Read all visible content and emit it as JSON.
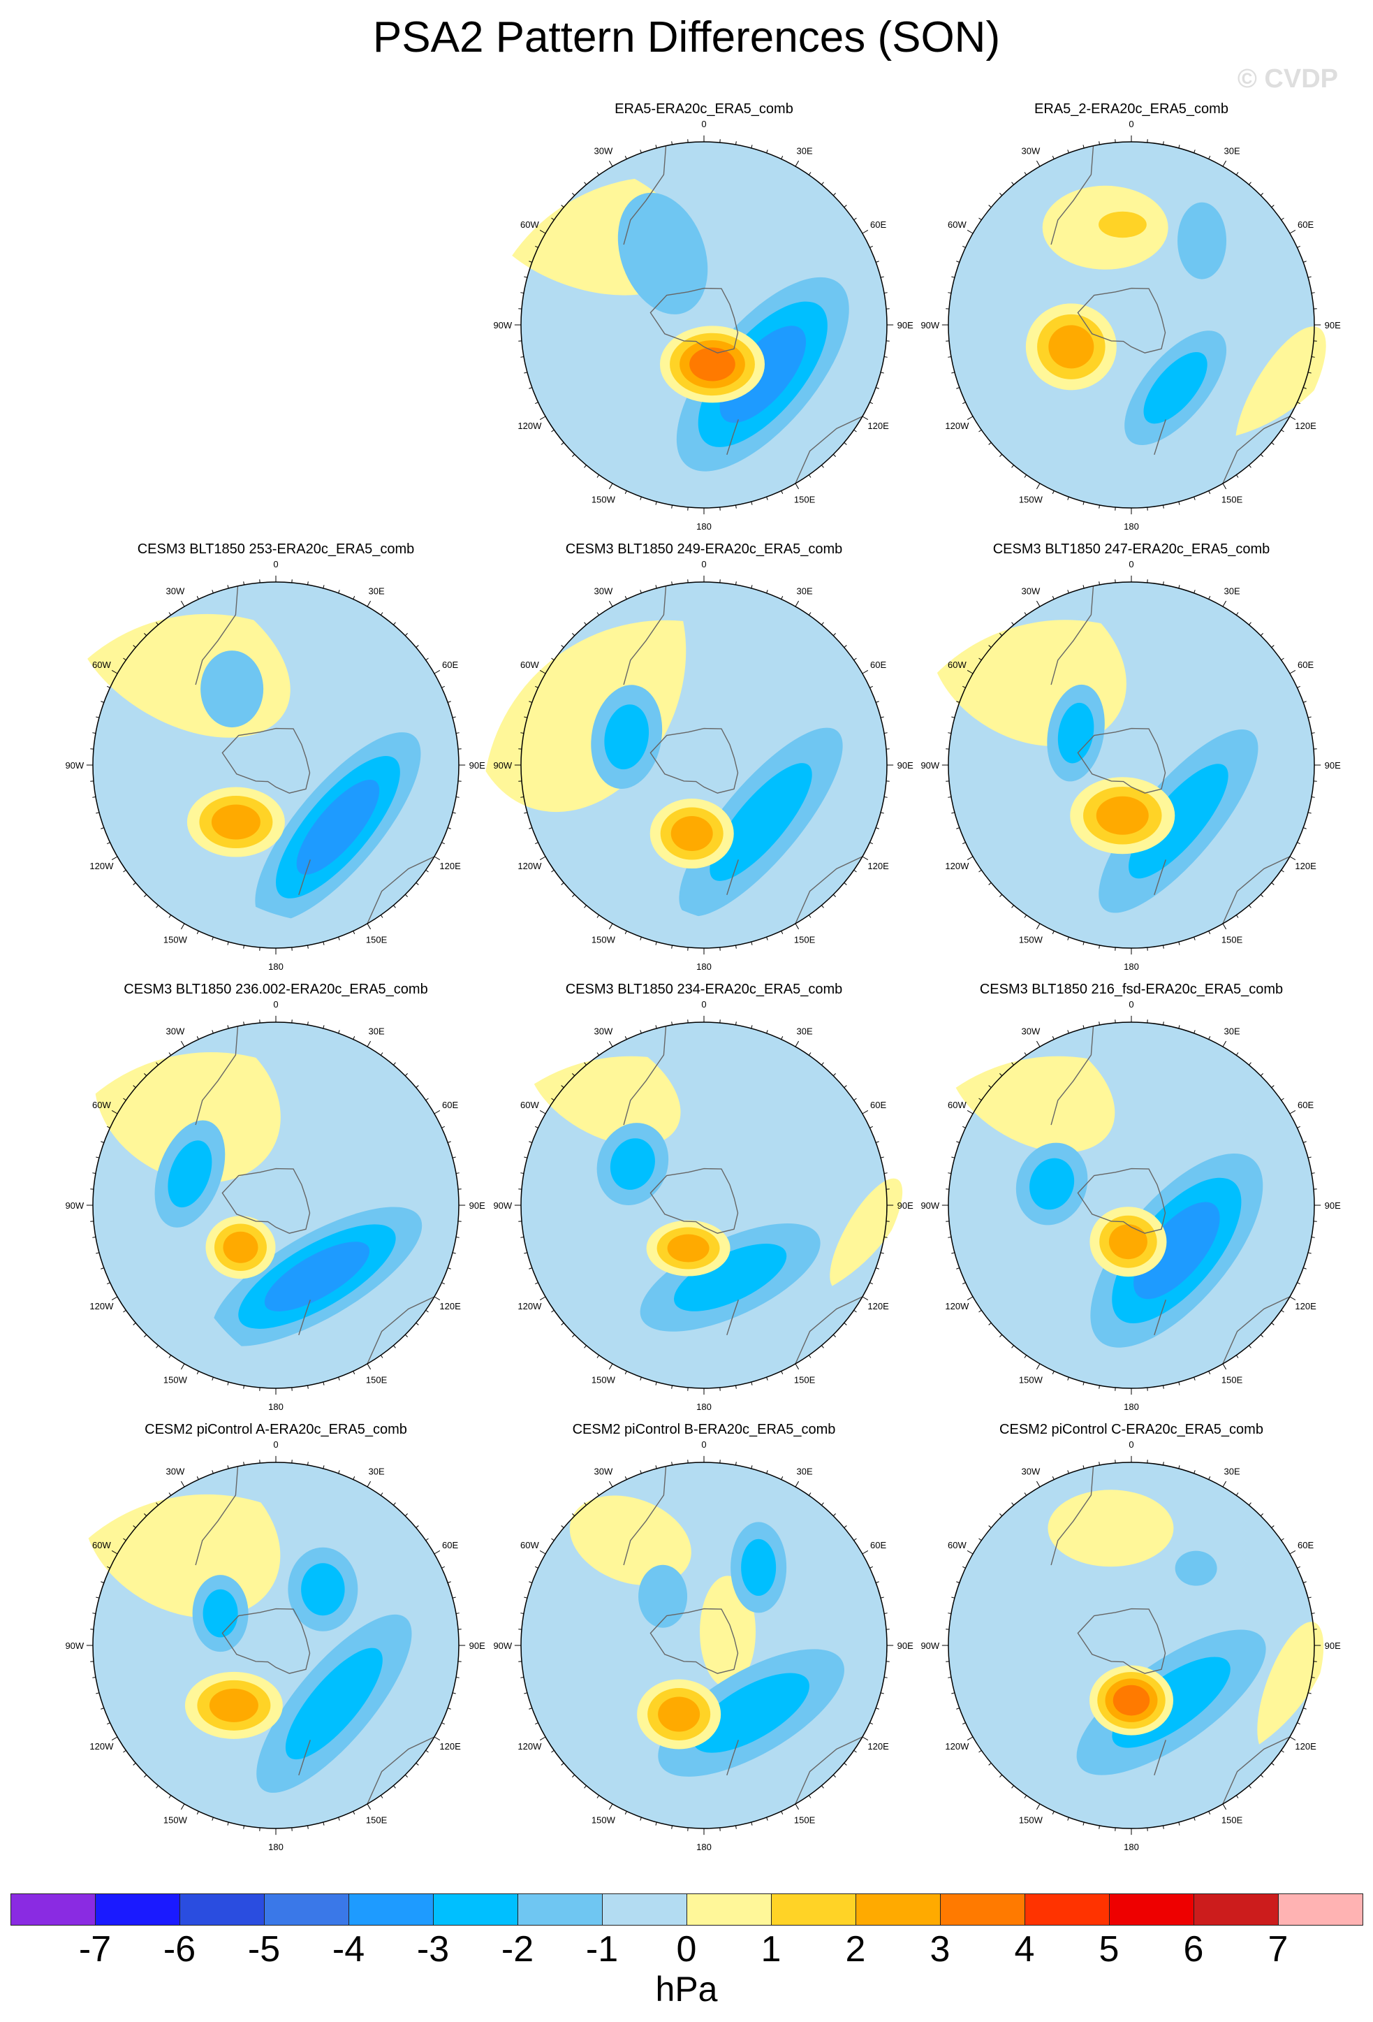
{
  "title": "PSA2 Pattern Differences (SON)",
  "watermark": "© CVDP",
  "lon_labels": [
    "0",
    "30E",
    "60E",
    "90E",
    "120E",
    "150E",
    "180",
    "150W",
    "120W",
    "90W",
    "60W",
    "30W"
  ],
  "panels": [
    {
      "title": "ERA5-ERA20c_ERA5_comb",
      "row": 0,
      "col": 1,
      "variant": 0
    },
    {
      "title": "ERA5_2-ERA20c_ERA5_comb",
      "row": 0,
      "col": 2,
      "variant": 1
    },
    {
      "title": "CESM3 BLT1850 253-ERA20c_ERA5_comb",
      "row": 1,
      "col": 0,
      "variant": 2
    },
    {
      "title": "CESM3 BLT1850 249-ERA20c_ERA5_comb",
      "row": 1,
      "col": 1,
      "variant": 3
    },
    {
      "title": "CESM3 BLT1850 247-ERA20c_ERA5_comb",
      "row": 1,
      "col": 2,
      "variant": 4
    },
    {
      "title": "CESM3 BLT1850 236.002-ERA20c_ERA5_comb",
      "row": 2,
      "col": 0,
      "variant": 5
    },
    {
      "title": "CESM3 BLT1850 234-ERA20c_ERA5_comb",
      "row": 2,
      "col": 1,
      "variant": 6
    },
    {
      "title": "CESM3 BLT1850 216_fsd-ERA20c_ERA5_comb",
      "row": 2,
      "col": 2,
      "variant": 7
    },
    {
      "title": "CESM2 piControl A-ERA20c_ERA5_comb",
      "row": 3,
      "col": 0,
      "variant": 8
    },
    {
      "title": "CESM2 piControl B-ERA20c_ERA5_comb",
      "row": 3,
      "col": 1,
      "variant": 9
    },
    {
      "title": "CESM2 piControl C-ERA20c_ERA5_comb",
      "row": 3,
      "col": 2,
      "variant": 10
    }
  ],
  "colorbar": {
    "unit": "hPa",
    "tick_labels": [
      "-7",
      "-6",
      "-5",
      "-4",
      "-3",
      "-2",
      "-1",
      "0",
      "1",
      "2",
      "3",
      "4",
      "5",
      "6",
      "7"
    ],
    "colors": [
      "#8a2be2",
      "#1a1aff",
      "#2a4de0",
      "#3a78e8",
      "#1e9bff",
      "#00bfff",
      "#6fc6f2",
      "#b3dcf2",
      "#fff799",
      "#ffd326",
      "#ffaa00",
      "#ff7a00",
      "#ff3300",
      "#ee0000",
      "#cc1c1c",
      "#ffb3b3"
    ]
  },
  "chart_data": {
    "type": "heatmap",
    "title": "PSA2 Pattern Differences (SON)",
    "projection": "south polar stereographic",
    "variable": "sea level pressure difference",
    "units": "hPa",
    "levels": [
      -7,
      -6,
      -5,
      -4,
      -3,
      -2,
      -1,
      0,
      1,
      2,
      3,
      4,
      5,
      6,
      7
    ],
    "panel_titles": [
      "ERA5-ERA20c_ERA5_comb",
      "ERA5_2-ERA20c_ERA5_comb",
      "CESM3 BLT1850 253-ERA20c_ERA5_comb",
      "CESM3 BLT1850 249-ERA20c_ERA5_comb",
      "CESM3 BLT1850 247-ERA20c_ERA5_comb",
      "CESM3 BLT1850 236.002-ERA20c_ERA5_comb",
      "CESM3 BLT1850 234-ERA20c_ERA5_comb",
      "CESM3 BLT1850 216_fsd-ERA20c_ERA5_comb",
      "CESM2 piControl A-ERA20c_ERA5_comb",
      "CESM2 piControl B-ERA20c_ERA5_comb",
      "CESM2 piControl C-ERA20c_ERA5_comb"
    ]
  }
}
